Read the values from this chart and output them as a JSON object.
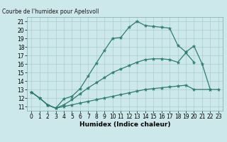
{
  "title": "Courbe de l'humidex pour Apelsvoll",
  "xlabel": "Humidex (Indice chaleur)",
  "background_color": "#cce8ea",
  "grid_color": "#aacccc",
  "line_color": "#2e7d6e",
  "xlim": [
    -0.5,
    23.5
  ],
  "ylim": [
    10.5,
    21.5
  ],
  "xticks": [
    0,
    1,
    2,
    3,
    4,
    5,
    6,
    7,
    8,
    9,
    10,
    11,
    12,
    13,
    14,
    15,
    16,
    17,
    18,
    19,
    20,
    21,
    22,
    23
  ],
  "yticks": [
    11,
    12,
    13,
    14,
    15,
    16,
    17,
    18,
    19,
    20,
    21
  ],
  "lines": [
    {
      "x": [
        0,
        1,
        2,
        3,
        4,
        5,
        6,
        7,
        8,
        9,
        10,
        11,
        12,
        13,
        14,
        15,
        16,
        17,
        18,
        19,
        20,
        21,
        22
      ],
      "y": [
        12.7,
        12.0,
        11.2,
        10.8,
        11.9,
        12.2,
        13.1,
        14.6,
        16.1,
        17.6,
        19.0,
        19.1,
        20.3,
        21.0,
        20.5,
        20.4,
        20.3,
        20.2,
        18.2,
        17.4,
        18.1,
        16.0,
        13.0
      ]
    },
    {
      "x": [
        0,
        1,
        2,
        3,
        4,
        5,
        6,
        7,
        8,
        9,
        10,
        11,
        12,
        13,
        14,
        15,
        16,
        17,
        18,
        19,
        20
      ],
      "y": [
        12.7,
        12.0,
        11.2,
        10.8,
        11.2,
        11.8,
        12.5,
        13.2,
        13.8,
        14.4,
        15.0,
        15.4,
        15.8,
        16.2,
        16.5,
        16.6,
        16.6,
        16.5,
        16.2,
        17.3,
        16.2
      ]
    },
    {
      "x": [
        0,
        1,
        2,
        3,
        4,
        5,
        6,
        7,
        8,
        9,
        10,
        11,
        12,
        13,
        14,
        15,
        16,
        17,
        18,
        19,
        20,
        22,
        23
      ],
      "y": [
        12.7,
        12.0,
        11.2,
        10.8,
        11.0,
        11.2,
        11.4,
        11.6,
        11.8,
        12.0,
        12.2,
        12.4,
        12.6,
        12.8,
        13.0,
        13.1,
        13.2,
        13.3,
        13.4,
        13.5,
        13.0,
        13.0,
        13.0
      ]
    }
  ]
}
